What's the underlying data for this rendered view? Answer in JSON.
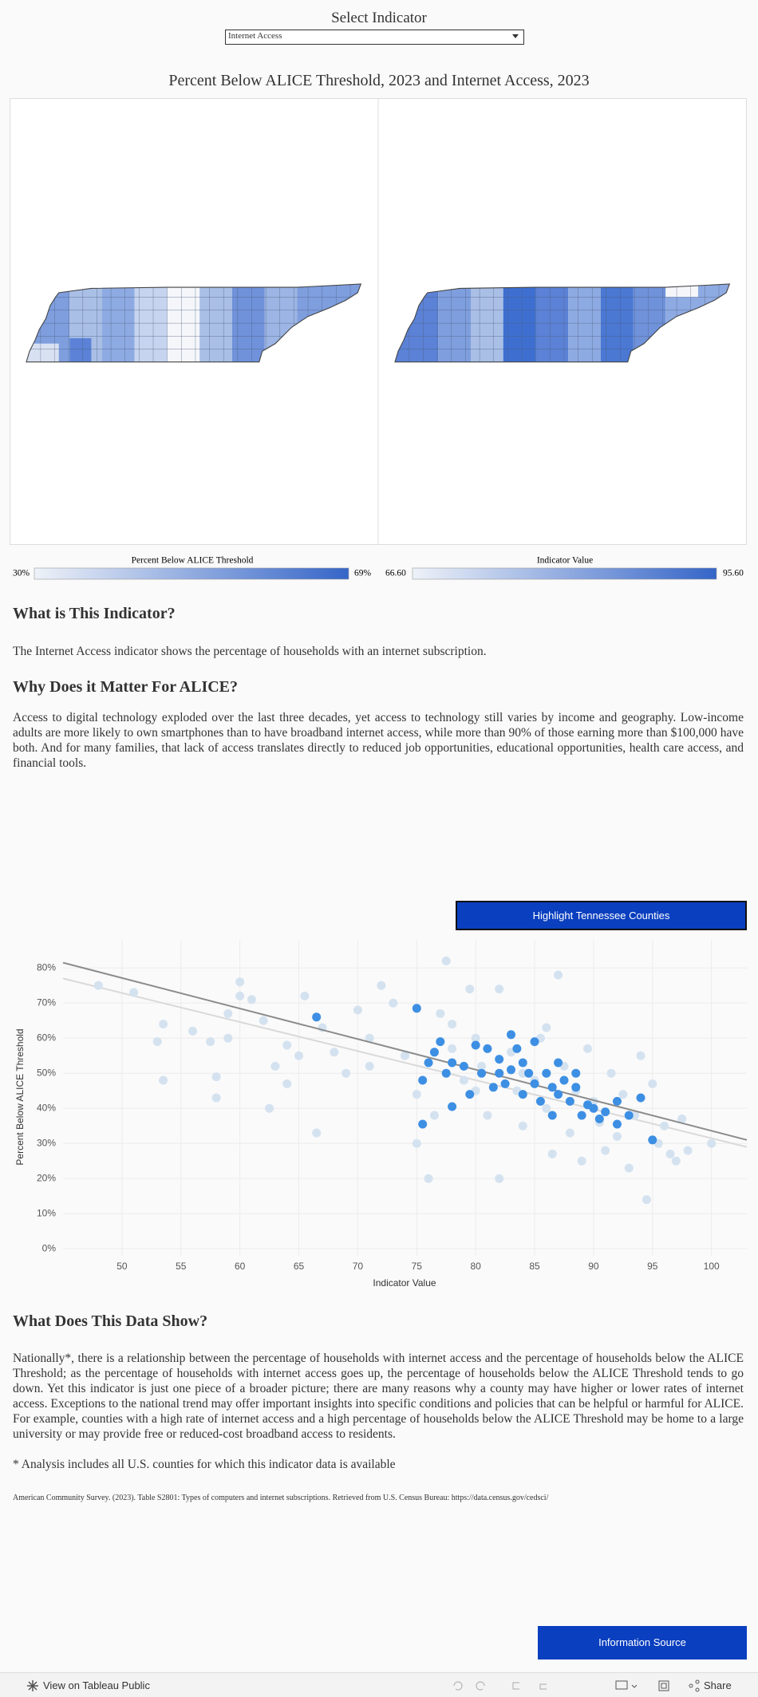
{
  "header": {
    "select_label": "Select Indicator",
    "dropdown_value": "Internet Access"
  },
  "map_title": "Percent Below ALICE Threshold, 2023 and Internet Access, 2023",
  "legends": [
    {
      "title": "Percent Below ALICE Threshold",
      "min": "30%",
      "max": "69%"
    },
    {
      "title": "Indicator Value",
      "min": "66.60",
      "max": "95.60"
    }
  ],
  "sections": [
    {
      "heading": "What is This Indicator?",
      "body": "The Internet Access indicator shows the percentage of households with an internet subscription."
    },
    {
      "heading": "Why Does it Matter For ALICE?",
      "body": "Access to digital technology exploded over the last three decades, yet access to technology still varies by income and geography. Low-income adults are more likely to own smartphones than to have broadband internet access, while more than 90% of those earning more than $100,000 have both. And for many families, that lack of access translates directly to reduced job opportunities, educational opportunities, health care access, and financial tools."
    },
    {
      "heading": "What Does This Data Show?",
      "body": "Nationally*, there is a relationship between the percentage of households with internet access and the percentage of households below the ALICE Threshold; as the percentage of households with internet access goes up, the percentage of households below the ALICE Threshold tends to go down. Yet this indicator is just one piece of a broader picture; there are many reasons why a county may have higher or lower rates of internet access. Exceptions to the national trend may offer important insights into specific conditions and policies that can be helpful or harmful for ALICE. For example, counties with a high rate of internet access and a high percentage of households below the ALICE Threshold may be home to a large university or may provide free or reduced-cost broadband access to residents."
    }
  ],
  "highlight_button": "Highlight Tennessee Counties",
  "chart_data": {
    "type": "scatter",
    "x_label": "Indicator Value",
    "y_label": "Percent Below ALICE Threshold",
    "xlim": [
      45,
      103
    ],
    "ylim": [
      -2,
      88
    ],
    "xticks": [
      50,
      55,
      60,
      65,
      70,
      75,
      80,
      85,
      90,
      95,
      100
    ],
    "yticks": [
      {
        "value": 0,
        "label": "0%"
      },
      {
        "value": 10,
        "label": "10%"
      },
      {
        "value": 20,
        "label": "20%"
      },
      {
        "value": 30,
        "label": "30%"
      },
      {
        "value": 40,
        "label": "40%"
      },
      {
        "value": 50,
        "label": "50%"
      },
      {
        "value": 60,
        "label": "60%"
      },
      {
        "value": 70,
        "label": "70%"
      },
      {
        "value": 80,
        "label": "80%"
      }
    ],
    "grid": true,
    "series": [
      {
        "color": "#d4e2f0",
        "x": [
          48,
          51,
          53,
          53.5,
          53.5,
          56,
          58,
          58,
          57.5,
          59,
          59,
          60,
          60,
          61,
          62,
          62.5,
          63,
          64,
          65,
          65.5,
          66.5,
          67,
          68,
          69,
          70,
          71,
          72,
          73,
          74,
          75,
          75,
          76,
          76.5,
          77,
          77.5,
          78,
          79,
          79.5,
          80,
          80.5,
          81,
          82,
          82,
          83,
          83.5,
          84,
          85,
          85.5,
          86,
          86.5,
          87,
          87.5,
          88,
          88.5,
          89,
          89.5,
          90,
          90.5,
          91,
          91.5,
          92,
          92.5,
          93,
          93.5,
          94,
          94.5,
          95,
          95.5,
          96,
          96.5,
          97,
          97.5,
          98,
          100,
          86,
          84,
          80,
          78,
          71,
          64
        ],
        "values": [
          75,
          73,
          59,
          64,
          48,
          62,
          43,
          49,
          59,
          60,
          67,
          72,
          76,
          71,
          65,
          40,
          52,
          47,
          55,
          72,
          33,
          63,
          56,
          50,
          68,
          60,
          75,
          70,
          55,
          44,
          30,
          20,
          38,
          67,
          82,
          57,
          48,
          74,
          60,
          52,
          38,
          74,
          20,
          56,
          45,
          35,
          48,
          60,
          40,
          27,
          78,
          52,
          33,
          45,
          25,
          57,
          42,
          36,
          28,
          50,
          32,
          44,
          23,
          38,
          55,
          14,
          47,
          30,
          35,
          27,
          25,
          37,
          28,
          30,
          63,
          50,
          45,
          64,
          52,
          58
        ]
      },
      {
        "color": "#3d8fe3",
        "x": [
          66.5,
          75,
          75.5,
          75.5,
          76,
          76.5,
          77,
          77.5,
          78,
          78,
          79,
          79.5,
          80,
          80.5,
          81,
          81.5,
          82,
          82,
          82.5,
          83,
          83,
          83.5,
          84,
          84,
          84.5,
          85,
          85,
          85.5,
          86,
          86.5,
          86.5,
          87,
          87,
          87.5,
          88,
          88.5,
          88.5,
          89,
          89.5,
          90,
          90.5,
          91,
          92,
          92,
          93,
          94,
          95
        ],
        "values": [
          66,
          68.5,
          35.5,
          48,
          53,
          56,
          59,
          50,
          53,
          40.5,
          52,
          44,
          58,
          50,
          57,
          46,
          50,
          54,
          47,
          51,
          61,
          57,
          53,
          44,
          50,
          47,
          59,
          42,
          50,
          46,
          38,
          44,
          53,
          48,
          42,
          46,
          50,
          38,
          41,
          40,
          37,
          39,
          35.5,
          42,
          38,
          43,
          31
        ]
      }
    ],
    "trendlines": [
      {
        "color": "#d9d9d9",
        "x": [
          45,
          103
        ],
        "values": [
          77,
          29
        ]
      },
      {
        "color": "#8c8c8c",
        "x": [
          45,
          103
        ],
        "values": [
          81.5,
          31
        ]
      }
    ]
  },
  "note": "* Analysis includes all U.S. counties for which this indicator data is available",
  "source": "American Community Survey. (2023). Table S2801: Types of computers and internet subscriptions. Retrieved from U.S. Census Bureau: https://data.census.gov/cedsci/",
  "info_button": "Information Source",
  "toolbar": {
    "view": "View on Tableau Public",
    "share": "Share"
  }
}
